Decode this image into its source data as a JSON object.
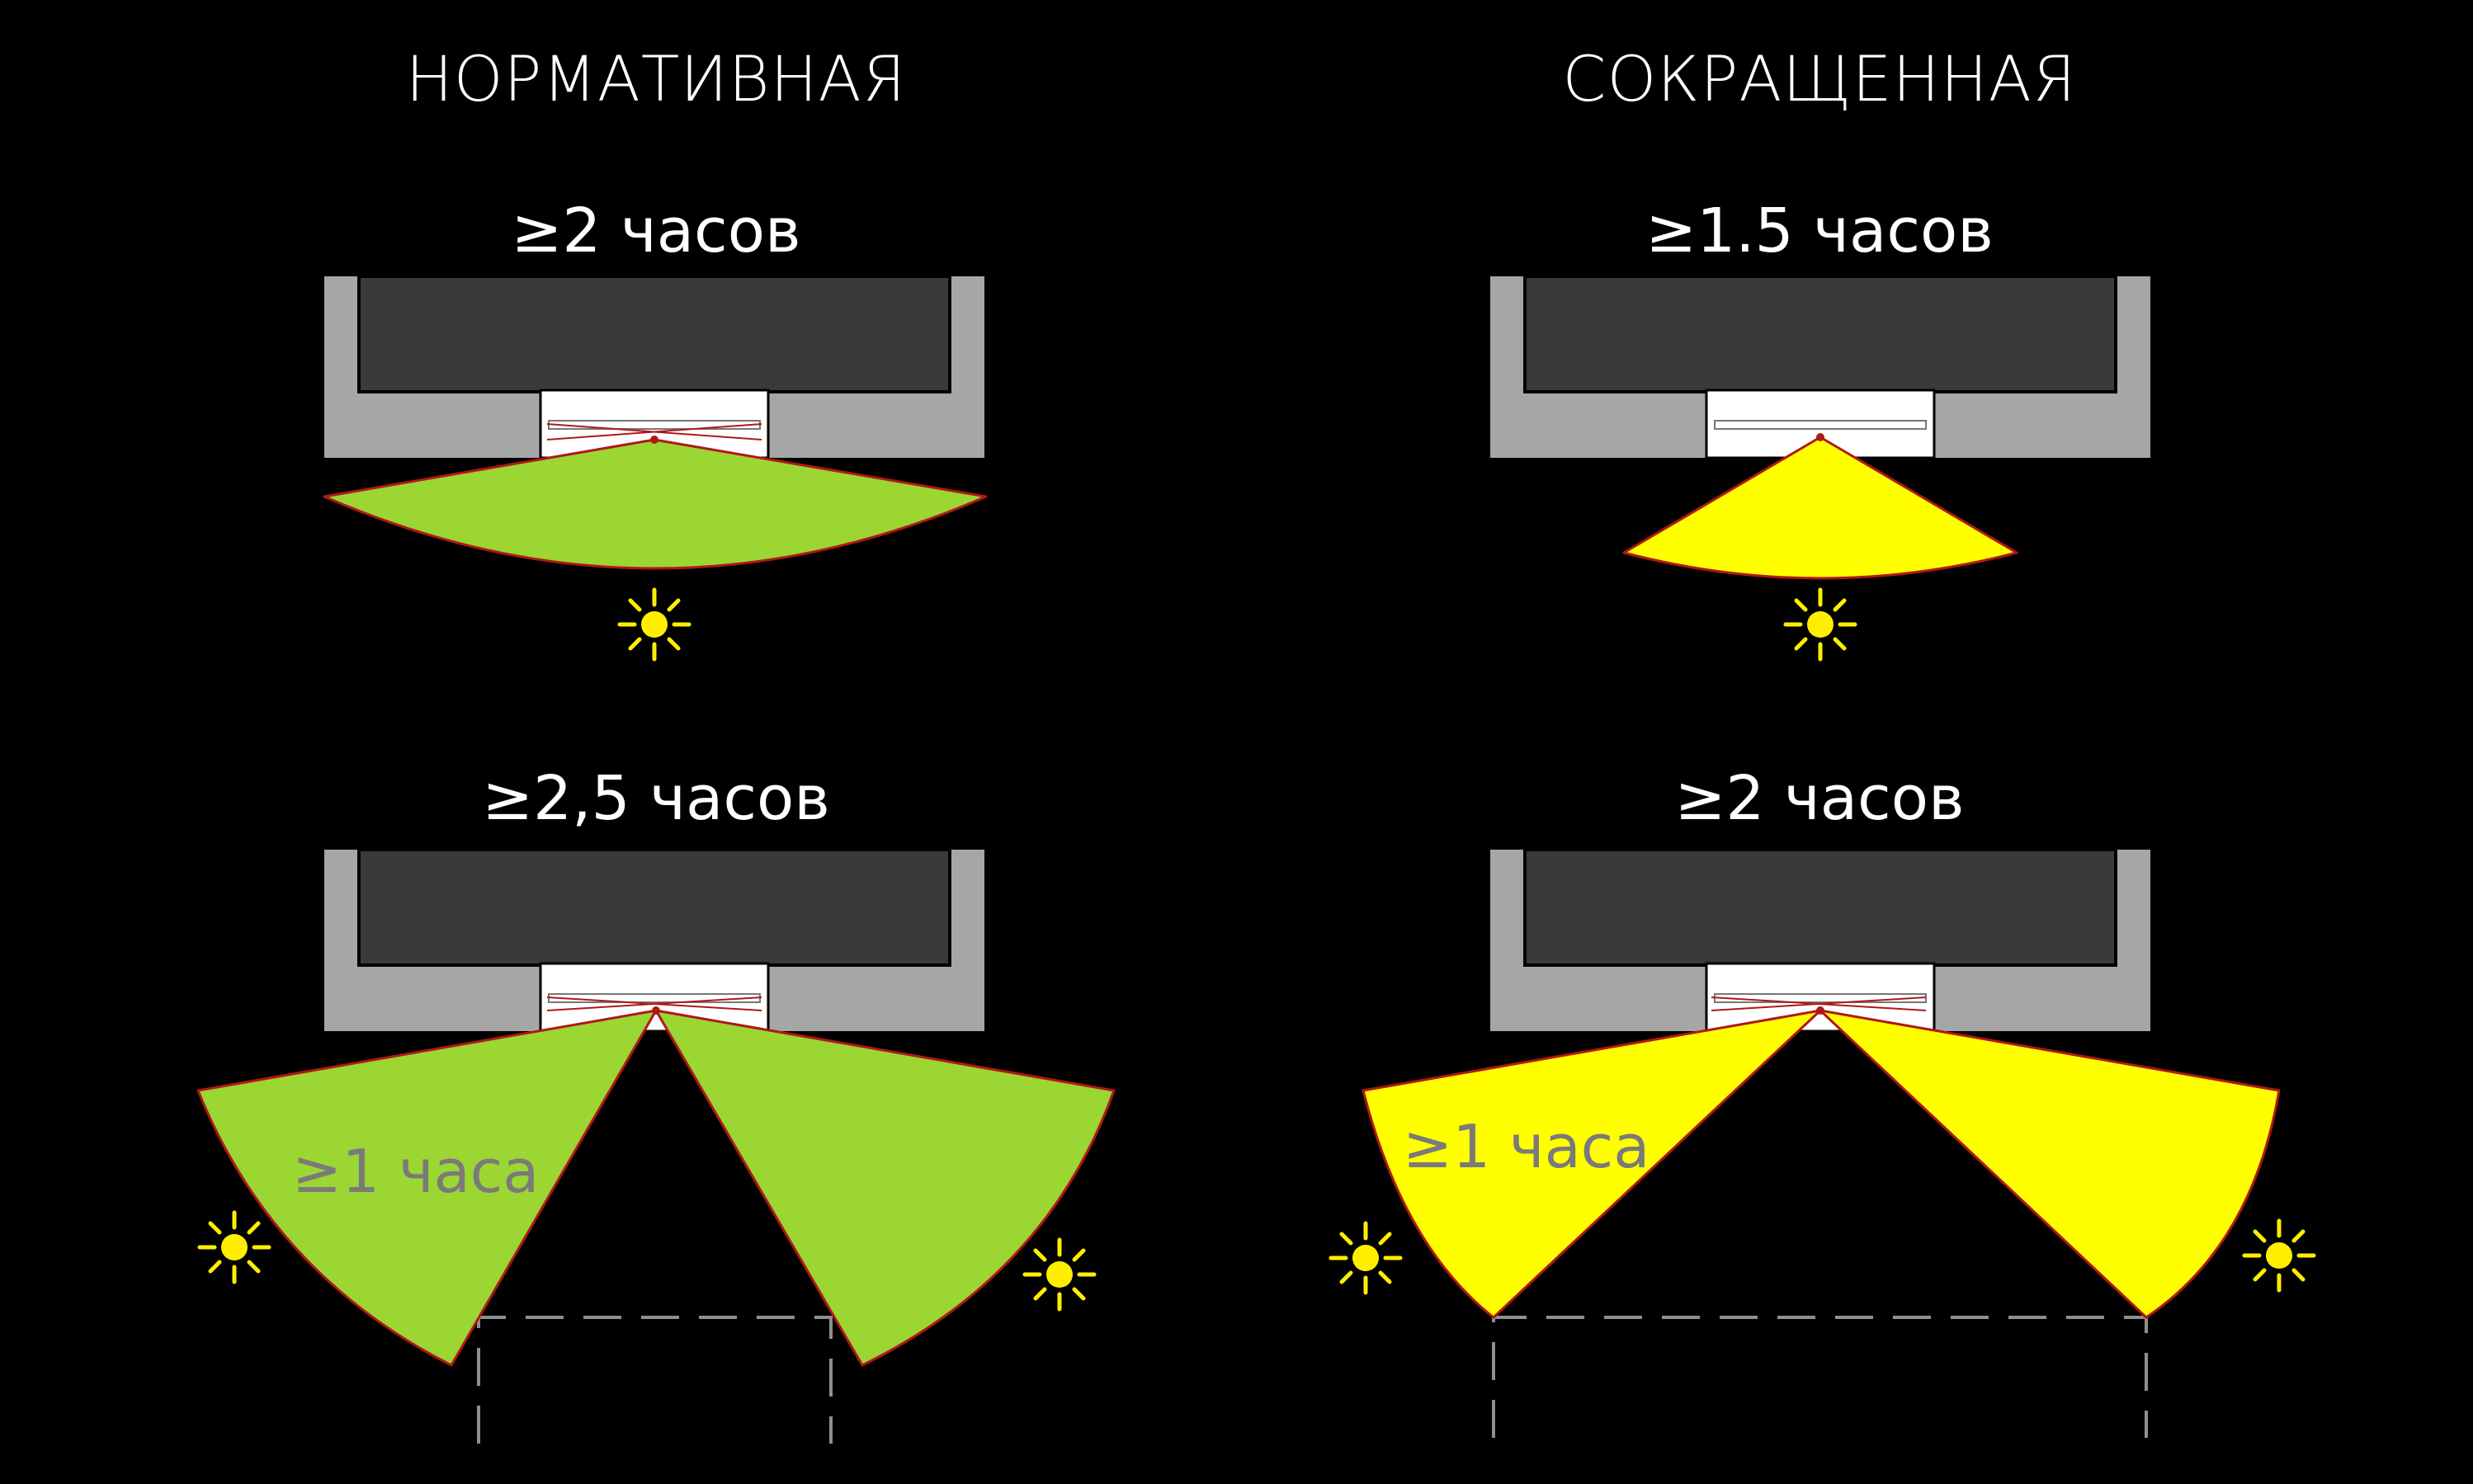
{
  "titles": {
    "left": "НОРМАТИВНАЯ",
    "right": "СОКРАЩЕННАЯ"
  },
  "panels": {
    "top_left": {
      "duration": "≥2 часов"
    },
    "top_right": {
      "duration": "≥1.5 часов"
    },
    "bottom_left": {
      "duration": "≥2,5 часов",
      "sub_duration": "≥1 часа"
    },
    "bottom_right": {
      "duration": "≥2 часов",
      "sub_duration": "≥1 часа"
    }
  },
  "colors": {
    "background": "#000000",
    "title_text": "#ffffff",
    "sub_text": "#7a7a7a",
    "normative_sector": "#9bd632",
    "reduced_sector": "#ffff00",
    "sector_outline": "#b01818",
    "wall": "#a6a6a6",
    "room": "#3a3a3a",
    "window": "#ffffff",
    "sun": "#ffee00",
    "dash_line": "#8f8f8f"
  }
}
